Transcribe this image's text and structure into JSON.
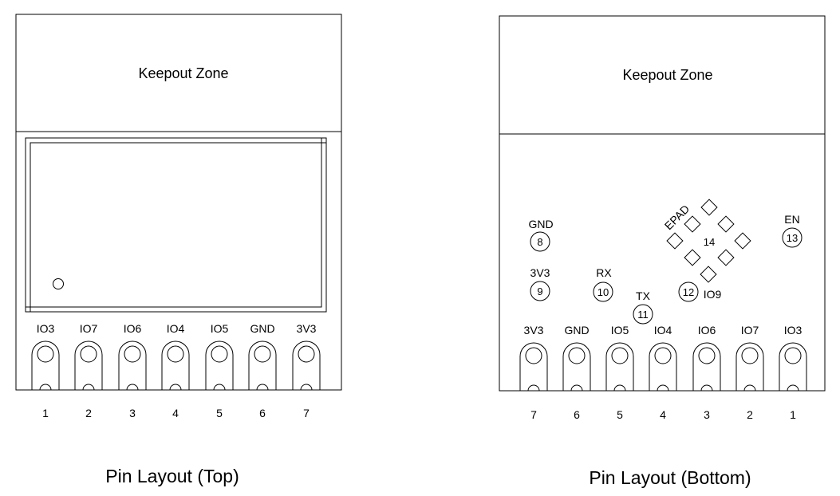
{
  "top": {
    "keepout_label": "Keepout Zone",
    "caption": "Pin Layout (Top)",
    "pins": [
      {
        "number": "1",
        "label": "IO3"
      },
      {
        "number": "2",
        "label": "IO7"
      },
      {
        "number": "3",
        "label": "IO6"
      },
      {
        "number": "4",
        "label": "IO4"
      },
      {
        "number": "5",
        "label": "IO5"
      },
      {
        "number": "6",
        "label": "GND"
      },
      {
        "number": "7",
        "label": "3V3"
      }
    ]
  },
  "bottom": {
    "keepout_label": "Keepout Zone",
    "caption": "Pin Layout (Bottom)",
    "pins": [
      {
        "number": "7",
        "label": "3V3"
      },
      {
        "number": "6",
        "label": "GND"
      },
      {
        "number": "5",
        "label": "IO5"
      },
      {
        "number": "4",
        "label": "IO4"
      },
      {
        "number": "3",
        "label": "IO6"
      },
      {
        "number": "2",
        "label": "IO7"
      },
      {
        "number": "1",
        "label": "IO3"
      }
    ],
    "pads": [
      {
        "number": "8",
        "label": "GND"
      },
      {
        "number": "9",
        "label": "3V3"
      },
      {
        "number": "10",
        "label": "RX"
      },
      {
        "number": "11",
        "label": "TX"
      },
      {
        "number": "12",
        "label": "IO9"
      },
      {
        "number": "13",
        "label": "EN"
      },
      {
        "number": "14",
        "label": "EPAD"
      }
    ]
  }
}
